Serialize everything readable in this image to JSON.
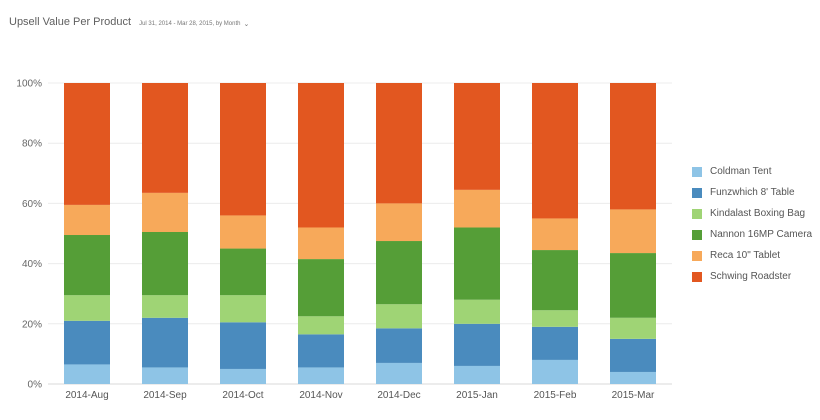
{
  "header": {
    "title": "Upsell Value Per Product",
    "date_range": "Jul 31, 2014 - Mar 28, 2015, by Month"
  },
  "icons": {
    "dropdown": "chevron-down-icon"
  },
  "chart_data": {
    "type": "bar",
    "stacked": true,
    "normalized": true,
    "categories": [
      "2014-Aug",
      "2014-Sep",
      "2014-Oct",
      "2014-Nov",
      "2014-Dec",
      "2015-Jan",
      "2015-Feb",
      "2015-Mar"
    ],
    "ylim": [
      0,
      100
    ],
    "yticks": [
      "0%",
      "20%",
      "40%",
      "60%",
      "80%",
      "100%"
    ],
    "grid": true,
    "legend_position": "right",
    "series": [
      {
        "name": "Coldman Tent",
        "color": "#8ec4e6",
        "values": [
          6.5,
          5.5,
          5,
          5.5,
          7,
          6,
          8,
          4
        ]
      },
      {
        "name": "Funzwhich 8' Table",
        "color": "#4a8bbe",
        "values": [
          14.5,
          16.5,
          15.5,
          11,
          11.5,
          14,
          11,
          11
        ]
      },
      {
        "name": "Kindalast Boxing Bag",
        "color": "#9fd475",
        "values": [
          8.5,
          7.5,
          9,
          6,
          8,
          8,
          5.5,
          7
        ]
      },
      {
        "name": "Nannon 16MP Camera",
        "color": "#559e37",
        "values": [
          20,
          21,
          15.5,
          19,
          21,
          24,
          20,
          21.5
        ]
      },
      {
        "name": "Reca 10\" Tablet",
        "color": "#f7a95a",
        "values": [
          10,
          13,
          11,
          10.5,
          12.5,
          12.5,
          10.5,
          14.5
        ]
      },
      {
        "name": "Schwing Roadster",
        "color": "#e25720",
        "values": [
          40.5,
          36.5,
          44,
          48,
          40,
          35.5,
          45,
          42
        ]
      }
    ]
  }
}
